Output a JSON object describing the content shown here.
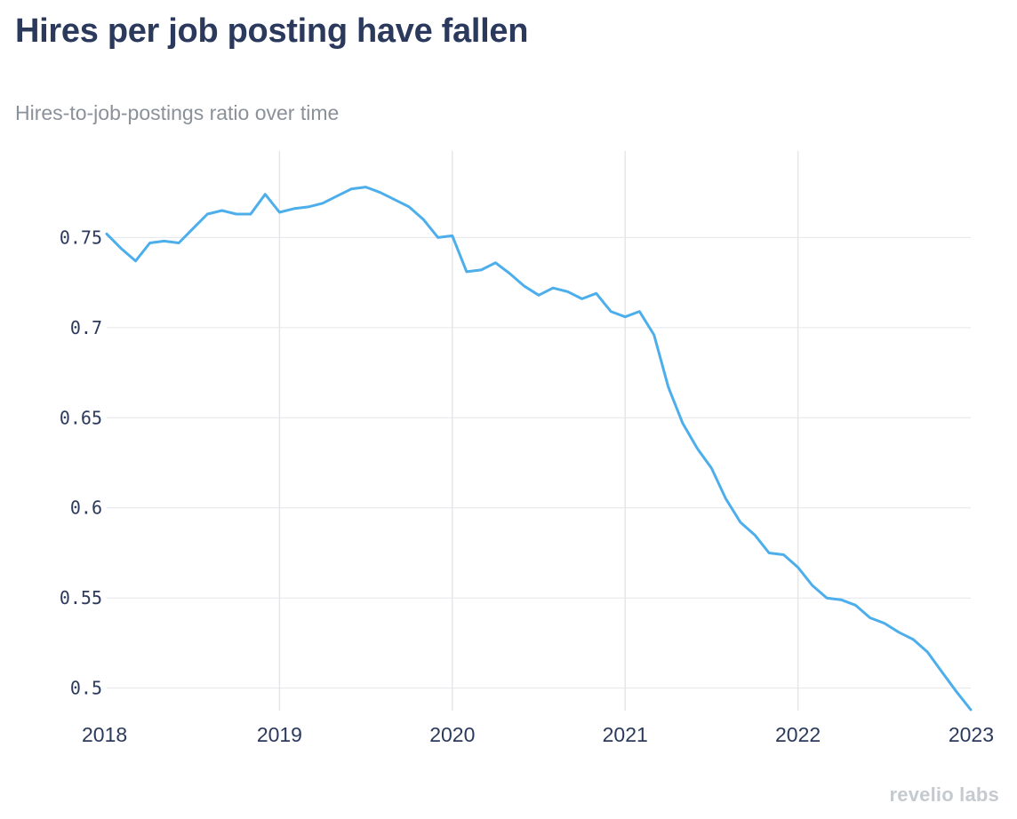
{
  "title": "Hires per job posting have fallen",
  "subtitle": "Hires-to-job-postings ratio over time",
  "watermark": "revelio labs",
  "colors": {
    "line": "#4daeec",
    "title": "#2b3a5c",
    "subtitle": "#8a9199",
    "grid": "#e4e6e9"
  },
  "chart_data": {
    "type": "line",
    "title": "Hires per job posting have fallen",
    "subtitle": "Hires-to-job-postings ratio over time",
    "xlabel": "",
    "ylabel": "",
    "xlim": [
      2018,
      2023
    ],
    "ylim": [
      0.4875,
      0.798
    ],
    "grid": true,
    "x_ticks": [
      2018,
      2019,
      2020,
      2021,
      2022,
      2023
    ],
    "x_tick_labels": [
      "2018",
      "2019",
      "2020",
      "2021",
      "2022",
      "2023"
    ],
    "y_ticks": [
      0.5,
      0.55,
      0.6,
      0.65,
      0.7,
      0.75
    ],
    "y_tick_labels": [
      "0.5",
      "0.55",
      "0.6",
      "0.65",
      "0.7",
      "0.75"
    ],
    "series": [
      {
        "name": "Hires-to-job-postings ratio",
        "x": [
          2018.0,
          2018.083,
          2018.167,
          2018.25,
          2018.333,
          2018.417,
          2018.5,
          2018.583,
          2018.667,
          2018.75,
          2018.833,
          2018.917,
          2019.0,
          2019.083,
          2019.167,
          2019.25,
          2019.333,
          2019.417,
          2019.5,
          2019.583,
          2019.667,
          2019.75,
          2019.833,
          2019.917,
          2020.0,
          2020.083,
          2020.167,
          2020.25,
          2020.333,
          2020.417,
          2020.5,
          2020.583,
          2020.667,
          2020.75,
          2020.833,
          2020.917,
          2021.0,
          2021.083,
          2021.167,
          2021.25,
          2021.333,
          2021.417,
          2021.5,
          2021.583,
          2021.667,
          2021.75,
          2021.833,
          2021.917,
          2022.0,
          2022.083,
          2022.167,
          2022.25,
          2022.333,
          2022.417,
          2022.5,
          2022.583,
          2022.667,
          2022.75,
          2022.833,
          2022.917,
          2023.0
        ],
        "values": [
          0.752,
          0.744,
          0.737,
          0.747,
          0.748,
          0.747,
          0.755,
          0.763,
          0.765,
          0.763,
          0.763,
          0.774,
          0.764,
          0.766,
          0.767,
          0.769,
          0.773,
          0.777,
          0.778,
          0.775,
          0.771,
          0.767,
          0.76,
          0.75,
          0.751,
          0.731,
          0.732,
          0.736,
          0.73,
          0.723,
          0.718,
          0.722,
          0.72,
          0.716,
          0.719,
          0.709,
          0.706,
          0.709,
          0.696,
          0.667,
          0.647,
          0.633,
          0.622,
          0.605,
          0.592,
          0.585,
          0.575,
          0.574,
          0.567,
          0.557,
          0.55,
          0.549,
          0.546,
          0.539,
          0.536,
          0.531,
          0.527,
          0.52,
          0.509,
          0.498,
          0.488
        ]
      }
    ]
  }
}
